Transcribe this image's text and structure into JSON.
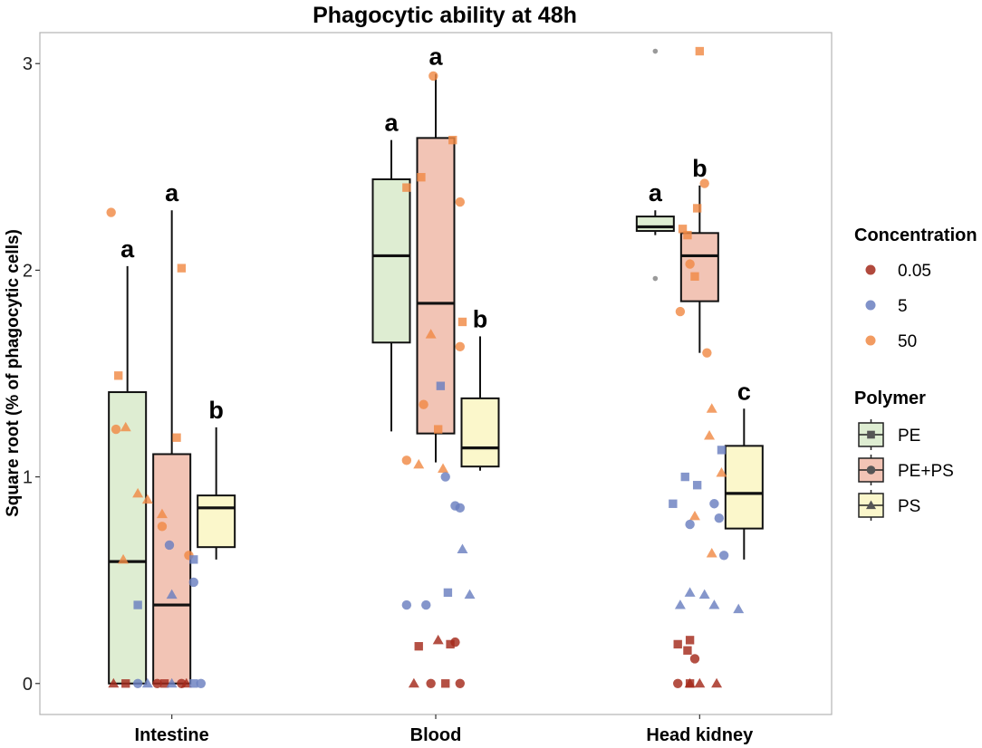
{
  "chart_data": {
    "type": "boxplot",
    "title": "Phagocytic ability at 48h",
    "xlabel": "",
    "ylabel": "Square root (% of phagocytic cells)",
    "ylim": [
      -0.15,
      3.15
    ],
    "yticks": [
      "0",
      "1",
      "2",
      "3"
    ],
    "ytick_values": [
      0,
      1,
      2,
      3
    ],
    "grid": false,
    "legend_position": "right",
    "categories": [
      "Intestine",
      "Blood",
      "Head kidney"
    ],
    "polymers": [
      {
        "name": "PE",
        "color": "#deedd2",
        "shape": "square"
      },
      {
        "name": "PE+PS",
        "color": "#f2c4b5",
        "shape": "circle"
      },
      {
        "name": "PS",
        "color": "#fbf7cb",
        "shape": "triangle"
      }
    ],
    "concentrations": [
      {
        "name": "0.05",
        "color": "#a3291b"
      },
      {
        "name": "5",
        "color": "#6a7fc0"
      },
      {
        "name": "50",
        "color": "#f08a45"
      }
    ],
    "legend": {
      "concentration_title": "Concentration",
      "polymer_title": "Polymer"
    },
    "boxes": [
      {
        "tissue": "Intestine",
        "polymer": "PE",
        "lower_whisker": 0,
        "q1": 0,
        "median": 0.59,
        "q3": 1.41,
        "upper_whisker": 2.02,
        "letter": "a"
      },
      {
        "tissue": "Intestine",
        "polymer": "PE+PS",
        "lower_whisker": 0,
        "q1": 0,
        "median": 0.38,
        "q3": 1.11,
        "upper_whisker": 2.29,
        "letter": "a"
      },
      {
        "tissue": "Intestine",
        "polymer": "PS",
        "lower_whisker": 0.6,
        "q1": 0.66,
        "median": 0.85,
        "q3": 0.91,
        "upper_whisker": 1.24,
        "letter": "b"
      },
      {
        "tissue": "Blood",
        "polymer": "PE",
        "lower_whisker": 1.22,
        "q1": 1.65,
        "median": 2.07,
        "q3": 2.44,
        "upper_whisker": 2.63,
        "letter": "a"
      },
      {
        "tissue": "Blood",
        "polymer": "PE+PS",
        "lower_whisker": 1.07,
        "q1": 1.21,
        "median": 1.84,
        "q3": 2.64,
        "upper_whisker": 2.95,
        "letter": "a"
      },
      {
        "tissue": "Blood",
        "polymer": "PS",
        "lower_whisker": 1.03,
        "q1": 1.05,
        "median": 1.14,
        "q3": 1.38,
        "upper_whisker": 1.68,
        "letter": "b"
      },
      {
        "tissue": "Head kidney",
        "polymer": "PE",
        "lower_whisker": 2.17,
        "q1": 2.19,
        "median": 2.21,
        "q3": 2.26,
        "upper_whisker": 2.29,
        "letter": "a"
      },
      {
        "tissue": "Head kidney",
        "polymer": "PE+PS",
        "lower_whisker": 1.6,
        "q1": 1.85,
        "median": 2.07,
        "q3": 2.18,
        "upper_whisker": 2.41,
        "letter": "b"
      },
      {
        "tissue": "Head kidney",
        "polymer": "PS",
        "lower_whisker": 0.6,
        "q1": 0.75,
        "median": 0.92,
        "q3": 1.15,
        "upper_whisker": 1.33,
        "letter": "c"
      }
    ],
    "outliers": [
      {
        "tissue": "Head kidney",
        "polymer": "PE",
        "y": 3.06
      },
      {
        "tissue": "Head kidney",
        "polymer": "PE",
        "y": 1.96
      }
    ],
    "points": [
      {
        "tissue": "Intestine",
        "polymer": "PE",
        "conc": "50",
        "jitter": -0.25,
        "y": 2.28,
        "shape": "circle"
      },
      {
        "tissue": "Intestine",
        "polymer": "PE",
        "conc": "50",
        "jitter": -0.22,
        "y": 1.49,
        "shape": "square"
      },
      {
        "tissue": "Intestine",
        "polymer": "PE",
        "conc": "50",
        "jitter": -0.23,
        "y": 1.23,
        "shape": "circle"
      },
      {
        "tissue": "Intestine",
        "polymer": "PE",
        "conc": "50",
        "jitter": -0.19,
        "y": 1.24,
        "shape": "triangle"
      },
      {
        "tissue": "Intestine",
        "polymer": "PE",
        "conc": "50",
        "jitter": -0.14,
        "y": 0.92,
        "shape": "triangle"
      },
      {
        "tissue": "Intestine",
        "polymer": "PE",
        "conc": "50",
        "jitter": -0.1,
        "y": 0.89,
        "shape": "triangle"
      },
      {
        "tissue": "Intestine",
        "polymer": "PE",
        "conc": "50",
        "jitter": -0.2,
        "y": 0.6,
        "shape": "triangle"
      },
      {
        "tissue": "Intestine",
        "polymer": "PE",
        "conc": "5",
        "jitter": -0.14,
        "y": 0.38,
        "shape": "square"
      },
      {
        "tissue": "Intestine",
        "polymer": "PE",
        "conc": "0.05",
        "jitter": -0.24,
        "y": 0,
        "shape": "triangle"
      },
      {
        "tissue": "Intestine",
        "polymer": "PE",
        "conc": "0.05",
        "jitter": -0.19,
        "y": 0,
        "shape": "square"
      },
      {
        "tissue": "Intestine",
        "polymer": "PE",
        "conc": "5",
        "jitter": -0.14,
        "y": 0,
        "shape": "circle"
      },
      {
        "tissue": "Intestine",
        "polymer": "PE",
        "conc": "5",
        "jitter": -0.1,
        "y": 0,
        "shape": "triangle"
      },
      {
        "tissue": "Intestine",
        "polymer": "PE+PS",
        "conc": "50",
        "jitter": 0.04,
        "y": 2.01,
        "shape": "square"
      },
      {
        "tissue": "Intestine",
        "polymer": "PE+PS",
        "conc": "50",
        "jitter": 0.02,
        "y": 1.19,
        "shape": "square"
      },
      {
        "tissue": "Intestine",
        "polymer": "PE+PS",
        "conc": "50",
        "jitter": -0.04,
        "y": 0.82,
        "shape": "triangle"
      },
      {
        "tissue": "Intestine",
        "polymer": "PE+PS",
        "conc": "50",
        "jitter": -0.04,
        "y": 0.76,
        "shape": "circle"
      },
      {
        "tissue": "Intestine",
        "polymer": "PE+PS",
        "conc": "5",
        "jitter": -0.01,
        "y": 0.67,
        "shape": "circle"
      },
      {
        "tissue": "Intestine",
        "polymer": "PE+PS",
        "conc": "5",
        "jitter": 0.0,
        "y": 0.43,
        "shape": "triangle"
      },
      {
        "tissue": "Intestine",
        "polymer": "PE+PS",
        "conc": "0.05",
        "jitter": -0.06,
        "y": 0,
        "shape": "circle"
      },
      {
        "tissue": "Intestine",
        "polymer": "PE+PS",
        "conc": "0.05",
        "jitter": -0.03,
        "y": 0,
        "shape": "square"
      },
      {
        "tissue": "Intestine",
        "polymer": "PE+PS",
        "conc": "5",
        "jitter": 0.0,
        "y": 0,
        "shape": "triangle"
      },
      {
        "tissue": "Intestine",
        "polymer": "PE+PS",
        "conc": "0.05",
        "jitter": 0.04,
        "y": 0,
        "shape": "circle"
      },
      {
        "tissue": "Intestine",
        "polymer": "PS",
        "conc": "50",
        "jitter": 0.07,
        "y": 0.62,
        "shape": "circle"
      },
      {
        "tissue": "Intestine",
        "polymer": "PS",
        "conc": "5",
        "jitter": 0.09,
        "y": 0.6,
        "shape": "square"
      },
      {
        "tissue": "Intestine",
        "polymer": "PS",
        "conc": "5",
        "jitter": 0.09,
        "y": 0.49,
        "shape": "circle"
      },
      {
        "tissue": "Intestine",
        "polymer": "PS",
        "conc": "0.05",
        "jitter": 0.06,
        "y": 0,
        "shape": "triangle"
      },
      {
        "tissue": "Intestine",
        "polymer": "PS",
        "conc": "5",
        "jitter": 0.09,
        "y": 0,
        "shape": "square"
      },
      {
        "tissue": "Intestine",
        "polymer": "PS",
        "conc": "5",
        "jitter": 0.12,
        "y": 0,
        "shape": "circle"
      },
      {
        "tissue": "Blood",
        "polymer": "PE",
        "conc": "50",
        "jitter": -0.12,
        "y": 2.4,
        "shape": "square"
      },
      {
        "tissue": "Blood",
        "polymer": "PE",
        "conc": "50",
        "jitter": -0.06,
        "y": 2.45,
        "shape": "square"
      },
      {
        "tissue": "Blood",
        "polymer": "PE",
        "conc": "50",
        "jitter": -0.02,
        "y": 1.69,
        "shape": "triangle"
      },
      {
        "tissue": "Blood",
        "polymer": "PE",
        "conc": "50",
        "jitter": -0.05,
        "y": 1.35,
        "shape": "circle"
      },
      {
        "tissue": "Blood",
        "polymer": "PE",
        "conc": "50",
        "jitter": -0.12,
        "y": 1.08,
        "shape": "circle"
      },
      {
        "tissue": "Blood",
        "polymer": "PE",
        "conc": "50",
        "jitter": -0.07,
        "y": 1.06,
        "shape": "triangle"
      },
      {
        "tissue": "Blood",
        "polymer": "PE",
        "conc": "5",
        "jitter": -0.12,
        "y": 0.38,
        "shape": "circle"
      },
      {
        "tissue": "Blood",
        "polymer": "PE",
        "conc": "5",
        "jitter": -0.04,
        "y": 0.38,
        "shape": "circle"
      },
      {
        "tissue": "Blood",
        "polymer": "PE",
        "conc": "0.05",
        "jitter": -0.07,
        "y": 0.18,
        "shape": "square"
      },
      {
        "tissue": "Blood",
        "polymer": "PE",
        "conc": "0.05",
        "jitter": -0.09,
        "y": 0,
        "shape": "triangle"
      },
      {
        "tissue": "Blood",
        "polymer": "PE",
        "conc": "0.05",
        "jitter": -0.02,
        "y": 0,
        "shape": "circle"
      },
      {
        "tissue": "Blood",
        "polymer": "PE+PS",
        "conc": "50",
        "jitter": -0.01,
        "y": 2.94,
        "shape": "circle"
      },
      {
        "tissue": "Blood",
        "polymer": "PE+PS",
        "conc": "50",
        "jitter": 0.07,
        "y": 2.63,
        "shape": "square"
      },
      {
        "tissue": "Blood",
        "polymer": "PE+PS",
        "conc": "50",
        "jitter": 0.1,
        "y": 2.33,
        "shape": "circle"
      },
      {
        "tissue": "Blood",
        "polymer": "PE+PS",
        "conc": "5",
        "jitter": 0.02,
        "y": 1.44,
        "shape": "square"
      },
      {
        "tissue": "Blood",
        "polymer": "PE+PS",
        "conc": "50",
        "jitter": 0.01,
        "y": 1.23,
        "shape": "square"
      },
      {
        "tissue": "Blood",
        "polymer": "PE+PS",
        "conc": "50",
        "jitter": 0.03,
        "y": 1.04,
        "shape": "triangle"
      },
      {
        "tissue": "Blood",
        "polymer": "PE+PS",
        "conc": "5",
        "jitter": 0.04,
        "y": 1.0,
        "shape": "circle"
      },
      {
        "tissue": "Blood",
        "polymer": "PE+PS",
        "conc": "5",
        "jitter": 0.08,
        "y": 0.86,
        "shape": "circle"
      },
      {
        "tissue": "Blood",
        "polymer": "PE+PS",
        "conc": "5",
        "jitter": 0.05,
        "y": 0.44,
        "shape": "square"
      },
      {
        "tissue": "Blood",
        "polymer": "PE+PS",
        "conc": "0.05",
        "jitter": 0.01,
        "y": 0.21,
        "shape": "triangle"
      },
      {
        "tissue": "Blood",
        "polymer": "PE+PS",
        "conc": "0.05",
        "jitter": 0.06,
        "y": 0.19,
        "shape": "square"
      },
      {
        "tissue": "Blood",
        "polymer": "PE+PS",
        "conc": "0.05",
        "jitter": 0.04,
        "y": 0,
        "shape": "square"
      },
      {
        "tissue": "Blood",
        "polymer": "PS",
        "conc": "50",
        "jitter": 0.11,
        "y": 1.75,
        "shape": "square"
      },
      {
        "tissue": "Blood",
        "polymer": "PS",
        "conc": "50",
        "jitter": 0.1,
        "y": 1.63,
        "shape": "circle"
      },
      {
        "tissue": "Blood",
        "polymer": "PS",
        "conc": "5",
        "jitter": 0.1,
        "y": 0.85,
        "shape": "circle"
      },
      {
        "tissue": "Blood",
        "polymer": "PS",
        "conc": "5",
        "jitter": 0.11,
        "y": 0.65,
        "shape": "triangle"
      },
      {
        "tissue": "Blood",
        "polymer": "PS",
        "conc": "5",
        "jitter": 0.14,
        "y": 0.43,
        "shape": "triangle"
      },
      {
        "tissue": "Blood",
        "polymer": "PS",
        "conc": "0.05",
        "jitter": 0.08,
        "y": 0.2,
        "shape": "circle"
      },
      {
        "tissue": "Blood",
        "polymer": "PS",
        "conc": "0.05",
        "jitter": 0.1,
        "y": 0,
        "shape": "circle"
      },
      {
        "tissue": "Head kidney",
        "polymer": "PE",
        "conc": "50",
        "jitter": -0.07,
        "y": 2.2,
        "shape": "square"
      },
      {
        "tissue": "Head kidney",
        "polymer": "PE",
        "conc": "50",
        "jitter": -0.05,
        "y": 2.17,
        "shape": "square"
      },
      {
        "tissue": "Head kidney",
        "polymer": "PE",
        "conc": "50",
        "jitter": -0.04,
        "y": 2.03,
        "shape": "circle"
      },
      {
        "tissue": "Head kidney",
        "polymer": "PE",
        "conc": "50",
        "jitter": -0.08,
        "y": 1.8,
        "shape": "circle"
      },
      {
        "tissue": "Head kidney",
        "polymer": "PE",
        "conc": "5",
        "jitter": -0.11,
        "y": 0.87,
        "shape": "square"
      },
      {
        "tissue": "Head kidney",
        "polymer": "PE",
        "conc": "5",
        "jitter": -0.08,
        "y": 0.38,
        "shape": "triangle"
      },
      {
        "tissue": "Head kidney",
        "polymer": "PE",
        "conc": "0.05",
        "jitter": -0.09,
        "y": 0.19,
        "shape": "square"
      },
      {
        "tissue": "Head kidney",
        "polymer": "PE",
        "conc": "0.05",
        "jitter": -0.05,
        "y": 0.16,
        "shape": "square"
      },
      {
        "tissue": "Head kidney",
        "polymer": "PE",
        "conc": "0.05",
        "jitter": -0.09,
        "y": 0,
        "shape": "circle"
      },
      {
        "tissue": "Head kidney",
        "polymer": "PE",
        "conc": "0.05",
        "jitter": -0.04,
        "y": 0,
        "shape": "square"
      },
      {
        "tissue": "Head kidney",
        "polymer": "PE+PS",
        "conc": "50",
        "jitter": 0.0,
        "y": 3.06,
        "shape": "square"
      },
      {
        "tissue": "Head kidney",
        "polymer": "PE+PS",
        "conc": "50",
        "jitter": -0.01,
        "y": 2.3,
        "shape": "square"
      },
      {
        "tissue": "Head kidney",
        "polymer": "PE+PS",
        "conc": "50",
        "jitter": 0.02,
        "y": 2.42,
        "shape": "circle"
      },
      {
        "tissue": "Head kidney",
        "polymer": "PE+PS",
        "conc": "50",
        "jitter": 0.03,
        "y": 1.6,
        "shape": "circle"
      },
      {
        "tissue": "Head kidney",
        "polymer": "PE+PS",
        "conc": "50",
        "jitter": -0.02,
        "y": 1.97,
        "shape": "square"
      },
      {
        "tissue": "Head kidney",
        "polymer": "PE+PS",
        "conc": "5",
        "jitter": -0.06,
        "y": 1.0,
        "shape": "square"
      },
      {
        "tissue": "Head kidney",
        "polymer": "PE+PS",
        "conc": "5",
        "jitter": -0.01,
        "y": 0.96,
        "shape": "square"
      },
      {
        "tissue": "Head kidney",
        "polymer": "PE+PS",
        "conc": "50",
        "jitter": -0.02,
        "y": 0.81,
        "shape": "triangle"
      },
      {
        "tissue": "Head kidney",
        "polymer": "PE+PS",
        "conc": "5",
        "jitter": -0.04,
        "y": 0.77,
        "shape": "circle"
      },
      {
        "tissue": "Head kidney",
        "polymer": "PE+PS",
        "conc": "5",
        "jitter": -0.04,
        "y": 0.44,
        "shape": "triangle"
      },
      {
        "tissue": "Head kidney",
        "polymer": "PE+PS",
        "conc": "5",
        "jitter": 0.02,
        "y": 0.43,
        "shape": "triangle"
      },
      {
        "tissue": "Head kidney",
        "polymer": "PE+PS",
        "conc": "0.05",
        "jitter": -0.04,
        "y": 0.21,
        "shape": "square"
      },
      {
        "tissue": "Head kidney",
        "polymer": "PE+PS",
        "conc": "0.05",
        "jitter": -0.02,
        "y": 0.12,
        "shape": "circle"
      },
      {
        "tissue": "Head kidney",
        "polymer": "PE+PS",
        "conc": "0.05",
        "jitter": -0.04,
        "y": 0,
        "shape": "triangle"
      },
      {
        "tissue": "Head kidney",
        "polymer": "PE+PS",
        "conc": "0.05",
        "jitter": 0.0,
        "y": 0,
        "shape": "triangle"
      },
      {
        "tissue": "Head kidney",
        "polymer": "PS",
        "conc": "50",
        "jitter": 0.05,
        "y": 1.33,
        "shape": "triangle"
      },
      {
        "tissue": "Head kidney",
        "polymer": "PS",
        "conc": "50",
        "jitter": 0.04,
        "y": 1.2,
        "shape": "triangle"
      },
      {
        "tissue": "Head kidney",
        "polymer": "PS",
        "conc": "50",
        "jitter": 0.09,
        "y": 1.02,
        "shape": "triangle"
      },
      {
        "tissue": "Head kidney",
        "polymer": "PS",
        "conc": "5",
        "jitter": 0.09,
        "y": 1.13,
        "shape": "square"
      },
      {
        "tissue": "Head kidney",
        "polymer": "PS",
        "conc": "5",
        "jitter": 0.06,
        "y": 0.87,
        "shape": "circle"
      },
      {
        "tissue": "Head kidney",
        "polymer": "PS",
        "conc": "5",
        "jitter": 0.08,
        "y": 0.8,
        "shape": "circle"
      },
      {
        "tissue": "Head kidney",
        "polymer": "PS",
        "conc": "50",
        "jitter": 0.05,
        "y": 0.63,
        "shape": "triangle"
      },
      {
        "tissue": "Head kidney",
        "polymer": "PS",
        "conc": "5",
        "jitter": 0.1,
        "y": 0.62,
        "shape": "circle"
      },
      {
        "tissue": "Head kidney",
        "polymer": "PS",
        "conc": "5",
        "jitter": 0.06,
        "y": 0.38,
        "shape": "triangle"
      },
      {
        "tissue": "Head kidney",
        "polymer": "PS",
        "conc": "5",
        "jitter": 0.16,
        "y": 0.36,
        "shape": "triangle"
      },
      {
        "tissue": "Head kidney",
        "polymer": "PS",
        "conc": "0.05",
        "jitter": 0.07,
        "y": 0,
        "shape": "triangle"
      }
    ]
  }
}
